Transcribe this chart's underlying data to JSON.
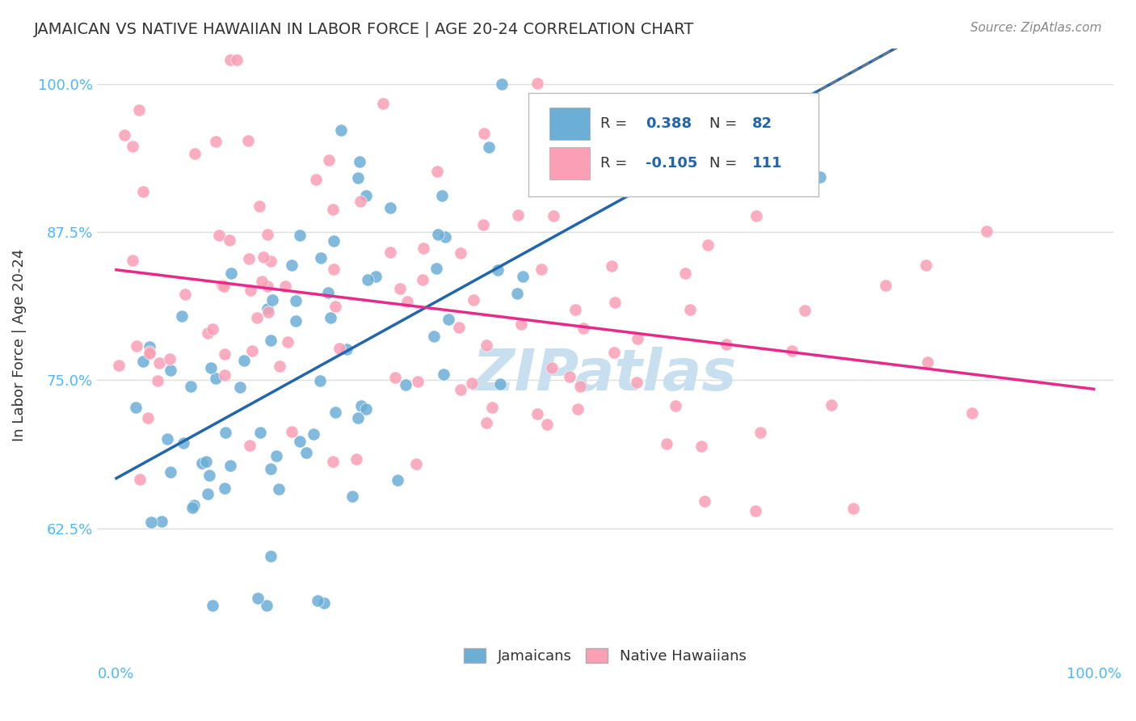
{
  "title": "JAMAICAN VS NATIVE HAWAIIAN IN LABOR FORCE | AGE 20-24 CORRELATION CHART",
  "source": "Source: ZipAtlas.com",
  "ylabel": "In Labor Force | Age 20-24",
  "ymin": 0.53,
  "ymax": 1.03,
  "xmin": -0.02,
  "xmax": 1.02,
  "r_jamaican": 0.388,
  "n_jamaican": 82,
  "r_hawaiian": -0.105,
  "n_hawaiian": 111,
  "color_jamaican": "#6baed6",
  "color_hawaiian": "#fa9fb5",
  "color_jamaican_line": "#2166ac",
  "color_hawaiian_line": "#e7298a",
  "color_axis_labels": "#4db8ff",
  "watermark_text": "ZIPatlas",
  "watermark_color": "#c8dff0",
  "background_color": "#ffffff",
  "grid_color": "#dddddd",
  "legend_r_color": "#2166ac"
}
